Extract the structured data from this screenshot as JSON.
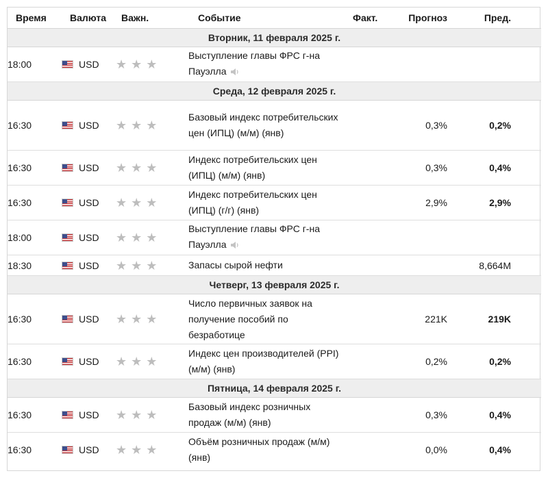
{
  "headers": {
    "time": "Время",
    "currency": "Валюта",
    "importance": "Важн.",
    "event": "Событие",
    "actual": "Факт.",
    "forecast": "Прогноз",
    "previous": "Пред."
  },
  "days": [
    {
      "title": "Вторник, 11 февраля 2025 г."
    },
    {
      "title": "Среда, 12 февраля 2025 г."
    },
    {
      "title": "Четверг, 13 февраля 2025 г."
    },
    {
      "title": "Пятница, 14 февраля 2025 г."
    }
  ],
  "events": [
    {
      "time": "18:00",
      "currency": "USD",
      "event": "Выступление главы ФРС г-на Пауэлла",
      "actual": "",
      "forecast": "",
      "previous": "",
      "has_audio": true
    },
    {
      "time": "16:30",
      "currency": "USD",
      "event": "Базовый индекс потребительских цен (ИПЦ) (м/м) (янв)",
      "actual": "",
      "forecast": "0,3%",
      "previous": "0,2%"
    },
    {
      "time": "16:30",
      "currency": "USD",
      "event": "Индекс потребительских цен (ИПЦ) (м/м) (янв)",
      "actual": "",
      "forecast": "0,3%",
      "previous": "0,4%"
    },
    {
      "time": "16:30",
      "currency": "USD",
      "event": "Индекс потребительских цен (ИПЦ) (г/г) (янв)",
      "actual": "",
      "forecast": "2,9%",
      "previous": "2,9%"
    },
    {
      "time": "18:00",
      "currency": "USD",
      "event": "Выступление главы ФРС г-на Пауэлла",
      "actual": "",
      "forecast": "",
      "previous": "",
      "has_audio": true
    },
    {
      "time": "18:30",
      "currency": "USD",
      "event": "Запасы сырой нефти",
      "actual": "",
      "forecast": "",
      "previous": "8,664M"
    },
    {
      "time": "16:30",
      "currency": "USD",
      "event": "Число первичных заявок на получение пособий по безработице",
      "actual": "",
      "forecast": "221K",
      "previous": "219K"
    },
    {
      "time": "16:30",
      "currency": "USD",
      "event": "Индекс цен производителей (PPI) (м/м) (янв)",
      "actual": "",
      "forecast": "0,2%",
      "previous": "0,2%"
    },
    {
      "time": "16:30",
      "currency": "USD",
      "event": "Базовый индекс розничных продаж (м/м) (янв)",
      "actual": "",
      "forecast": "0,3%",
      "previous": "0,4%"
    },
    {
      "time": "16:30",
      "currency": "USD",
      "event": "Объём розничных продаж (м/м) (янв)",
      "actual": "",
      "forecast": "0,0%",
      "previous": "0,4%"
    }
  ],
  "icons": {
    "flag": "us-flag-icon",
    "star": "star-icon",
    "audio": "speaker-icon"
  },
  "colors": {
    "day_row_bg": "#eeeeee",
    "star": "#bdbdbd",
    "border": "#d6d6d6"
  }
}
